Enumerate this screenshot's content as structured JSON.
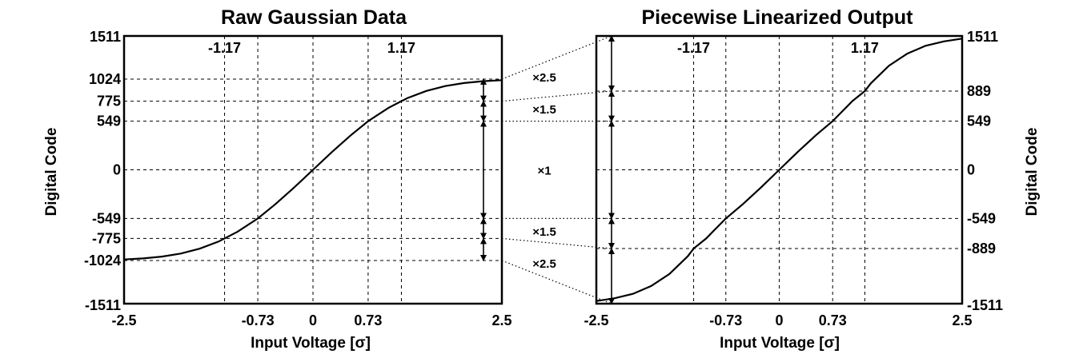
{
  "chart_data": [
    {
      "type": "line",
      "title": "Raw Gaussian Data",
      "xlabel": "Input Voltage [σ]",
      "ylabel": "Digital Code",
      "xlim": [
        -2.5,
        2.5
      ],
      "ylim": [
        -1511,
        1511
      ],
      "x_ticks": [
        "-2.5",
        "-0.73",
        "0",
        "0.73",
        "2.5"
      ],
      "x_top_labels": [
        "-1.17",
        "1.17"
      ],
      "y_ticks": [
        "1511",
        "1024",
        "775",
        "549",
        "0",
        "-549",
        "-775",
        "-1024",
        "-1511"
      ],
      "grid": true,
      "series": [
        {
          "x": [
            -2.5,
            -2.25,
            -2.0,
            -1.75,
            -1.5,
            -1.25,
            -1.0,
            -0.73,
            -0.5,
            -0.25,
            0,
            0.25,
            0.5,
            0.73,
            1.0,
            1.25,
            1.5,
            1.75,
            2.0,
            2.25,
            2.5
          ],
          "y": [
            -1012,
            -1000,
            -980,
            -945,
            -890,
            -810,
            -700,
            -549,
            -390,
            -200,
            0,
            200,
            390,
            549,
            700,
            810,
            890,
            945,
            980,
            1000,
            1012
          ]
        }
      ],
      "segments": [
        {
          "from": 1024,
          "to": 775,
          "multiplier": "×2.5"
        },
        {
          "from": 775,
          "to": 549,
          "multiplier": "×1.5"
        },
        {
          "from": 549,
          "to": -549,
          "multiplier": "×1"
        },
        {
          "from": -549,
          "to": -775,
          "multiplier": "×1.5"
        },
        {
          "from": -775,
          "to": -1024,
          "multiplier": "×2.5"
        }
      ]
    },
    {
      "type": "line",
      "title": "Piecewise Linearized Output",
      "xlabel": "Input Voltage [σ]",
      "ylabel": "Digital Code",
      "xlim": [
        -2.5,
        2.5
      ],
      "ylim": [
        -1511,
        1511
      ],
      "x_ticks": [
        "-2.5",
        "-0.73",
        "0",
        "0.73",
        "2.5"
      ],
      "x_top_labels": [
        "-1.17",
        "1.17"
      ],
      "y_ticks": [
        "1511",
        "889",
        "549",
        "0",
        "-549",
        "-889",
        "-1511"
      ],
      "grid": true,
      "series": [
        {
          "x": [
            -2.5,
            -2.25,
            -2.0,
            -1.75,
            -1.5,
            -1.25,
            -1.17,
            -1.0,
            -0.73,
            -0.5,
            -0.25,
            0,
            0.25,
            0.5,
            0.73,
            1.0,
            1.17,
            1.25,
            1.5,
            1.75,
            2.0,
            2.25,
            2.5
          ],
          "y": [
            -1481,
            -1450,
            -1400,
            -1312,
            -1175,
            -975,
            -889,
            -776,
            -549,
            -390,
            -200,
            0,
            200,
            390,
            549,
            776,
            889,
            975,
            1175,
            1312,
            1400,
            1450,
            1481
          ]
        }
      ],
      "segments": [
        {
          "from": 1511,
          "to": 889
        },
        {
          "from": 889,
          "to": 549
        },
        {
          "from": 549,
          "to": -549
        },
        {
          "from": -549,
          "to": -889
        },
        {
          "from": -889,
          "to": -1511
        }
      ]
    }
  ]
}
